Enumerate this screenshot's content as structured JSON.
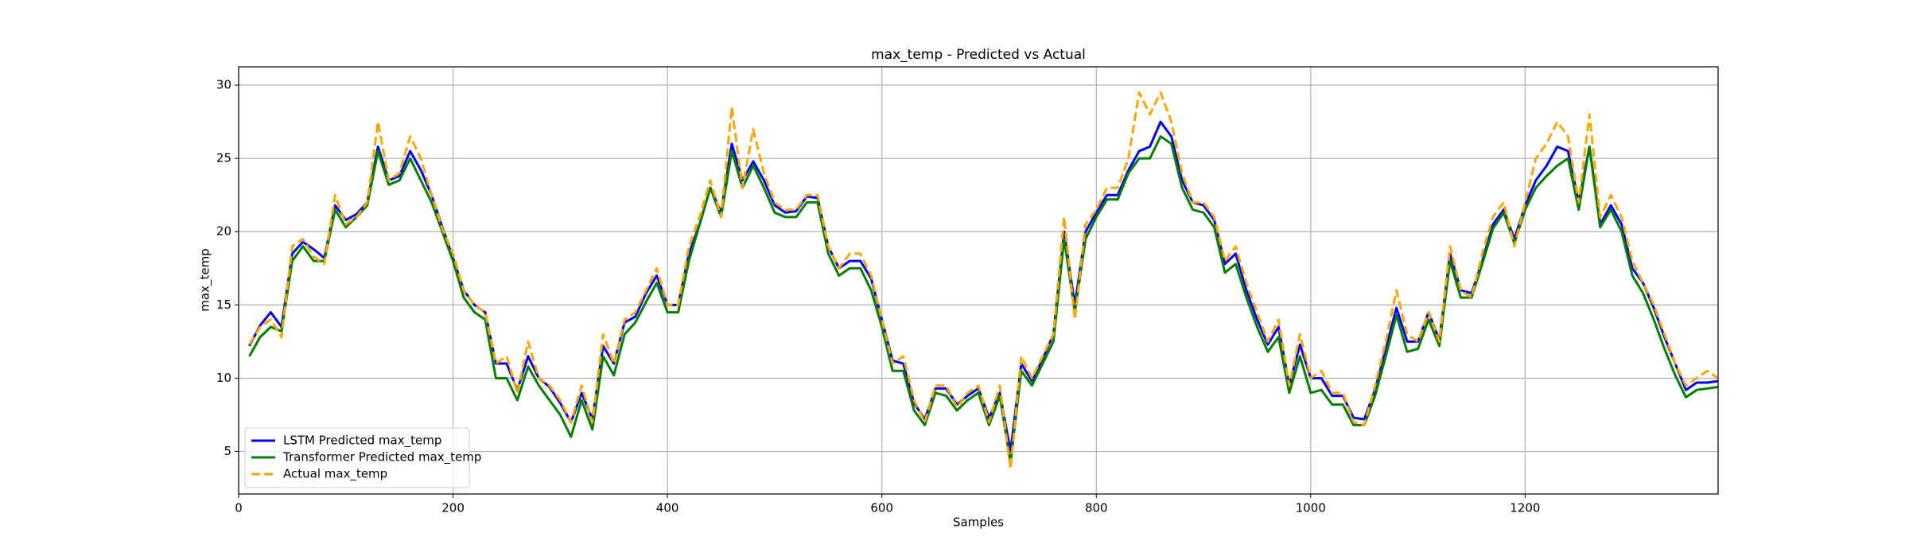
{
  "chart_data": {
    "type": "line",
    "title": "max_temp - Predicted vs Actual",
    "x_label": "Samples",
    "y_label": "max_temp",
    "xlim": [
      0,
      1380
    ],
    "ylim": [
      2.1,
      31.25
    ],
    "xticks": [
      0,
      200,
      400,
      600,
      800,
      1000,
      1200
    ],
    "yticks": [
      5,
      10,
      15,
      20,
      25,
      30
    ],
    "grid": true,
    "legend": "lower left",
    "x": [
      10,
      20,
      30,
      40,
      50,
      60,
      70,
      80,
      90,
      100,
      110,
      120,
      130,
      140,
      150,
      160,
      170,
      180,
      190,
      200,
      210,
      220,
      230,
      240,
      250,
      260,
      270,
      280,
      290,
      300,
      310,
      320,
      330,
      340,
      350,
      360,
      370,
      380,
      390,
      400,
      410,
      420,
      430,
      440,
      450,
      460,
      470,
      480,
      490,
      500,
      510,
      520,
      530,
      540,
      550,
      560,
      570,
      580,
      590,
      600,
      610,
      620,
      630,
      640,
      650,
      660,
      670,
      680,
      690,
      700,
      710,
      720,
      730,
      740,
      750,
      760,
      770,
      780,
      790,
      800,
      810,
      820,
      830,
      840,
      850,
      860,
      870,
      880,
      890,
      900,
      910,
      920,
      930,
      940,
      950,
      960,
      970,
      980,
      990,
      1000,
      1010,
      1020,
      1030,
      1040,
      1050,
      1060,
      1070,
      1080,
      1090,
      1100,
      1110,
      1120,
      1130,
      1140,
      1150,
      1160,
      1170,
      1180,
      1190,
      1200,
      1210,
      1220,
      1230,
      1240,
      1250,
      1260,
      1270,
      1280,
      1290,
      1300,
      1310,
      1320,
      1330,
      1340,
      1350,
      1360,
      1370,
      1380
    ],
    "series": [
      {
        "name": "LSTM Predicted max_temp",
        "color": "#0000ff",
        "style": "solid",
        "values": [
          12.2,
          13.6,
          14.5,
          13.5,
          18.5,
          19.3,
          18.8,
          18.2,
          21.8,
          20.8,
          21.2,
          22,
          25.8,
          23.5,
          23.8,
          25.5,
          24.2,
          22.5,
          20.3,
          18.2,
          16,
          15,
          14.5,
          11,
          11,
          9.2,
          11.5,
          10,
          9.4,
          8.3,
          7,
          9,
          7.2,
          12.2,
          11,
          13.8,
          14.2,
          15.8,
          17,
          15,
          15,
          18.5,
          20.5,
          23,
          21.3,
          26,
          23.5,
          24.8,
          23.5,
          21.8,
          21.3,
          21.4,
          22.4,
          22.3,
          19,
          17.5,
          18,
          18,
          16.8,
          14,
          11.2,
          11,
          8.3,
          7.2,
          9.3,
          9.3,
          8.2,
          8.8,
          9.3,
          7.3,
          9,
          5,
          11,
          9.8,
          11.3,
          13,
          20,
          15,
          20,
          21.3,
          22.5,
          22.5,
          24.2,
          25.5,
          25.8,
          27.5,
          26.5,
          23.5,
          22,
          21.8,
          20.8,
          17.8,
          18.5,
          16,
          14,
          12.3,
          13.5,
          9.5,
          12.3,
          10,
          10,
          8.8,
          8.8,
          7.3,
          7.2,
          9.2,
          12,
          14.8,
          12.5,
          12.5,
          14.5,
          12.6,
          18.5,
          16,
          15.8,
          18,
          20.5,
          21.5,
          19.5,
          21.8,
          23.5,
          24.5,
          25.8,
          25.5,
          22,
          25.8,
          20.5,
          21.8,
          20.5,
          17.5,
          16.5,
          14.8,
          12.8,
          11,
          9.2,
          9.7,
          9.7,
          9.8
        ]
      },
      {
        "name": "Transformer Predicted max_temp",
        "color": "#008000",
        "style": "solid",
        "values": [
          11.5,
          12.8,
          13.5,
          13.2,
          18,
          19,
          18,
          18,
          21.5,
          20.3,
          21,
          21.8,
          25.5,
          23.2,
          23.5,
          25,
          23.5,
          22,
          20,
          18,
          15.5,
          14.5,
          14,
          10,
          10,
          8.5,
          10.8,
          9.5,
          8.5,
          7.5,
          6,
          8.5,
          6.5,
          11.5,
          10.2,
          13,
          13.8,
          15.2,
          16.5,
          14.5,
          14.5,
          18,
          20.5,
          23,
          21,
          25.5,
          23,
          24.5,
          23,
          21.3,
          21,
          21,
          22,
          22,
          18.5,
          17,
          17.5,
          17.5,
          16,
          13.5,
          10.5,
          10.5,
          7.8,
          6.8,
          9,
          8.8,
          7.8,
          8.5,
          9,
          6.8,
          8.8,
          4.2,
          10.5,
          9.5,
          11,
          12.5,
          19.5,
          14.5,
          19.5,
          21,
          22.2,
          22.2,
          24,
          25,
          25,
          26.5,
          26,
          23,
          21.5,
          21.3,
          20.3,
          17.2,
          17.8,
          15.5,
          13.5,
          11.8,
          12.8,
          9,
          11.5,
          9,
          9.2,
          8.2,
          8.2,
          6.8,
          6.8,
          8.8,
          11.5,
          14.3,
          11.8,
          12,
          14,
          12.2,
          18,
          15.5,
          15.5,
          17.8,
          20.2,
          21.3,
          19.2,
          21.5,
          23,
          23.8,
          24.5,
          25,
          21.5,
          25.8,
          20.3,
          21.5,
          20,
          17,
          15.8,
          14,
          12,
          10.2,
          8.7,
          9.2,
          9.3,
          9.4
        ]
      },
      {
        "name": "Actual max_temp",
        "color": "#ffa500",
        "style": "dashed",
        "values": [
          12.3,
          13.5,
          14,
          12.8,
          19,
          19.5,
          18.3,
          17.8,
          22.5,
          20.5,
          21,
          22,
          27.5,
          23.5,
          24,
          26.5,
          25,
          22.5,
          20.2,
          18.5,
          16,
          15,
          14.5,
          11,
          11.5,
          9,
          12.5,
          10,
          9.5,
          8.5,
          7,
          9.5,
          7,
          13,
          11,
          14,
          14.5,
          16,
          17.5,
          15,
          15,
          19,
          21,
          23.5,
          21,
          28.5,
          23,
          27,
          24,
          22,
          21.5,
          21.5,
          22.5,
          22.5,
          19,
          17.5,
          18.5,
          18.5,
          17,
          14,
          11,
          11.5,
          8.5,
          7,
          9.5,
          9.5,
          8,
          9,
          9.5,
          7,
          9.5,
          3.8,
          11.5,
          10,
          11.5,
          13,
          21,
          14,
          20.5,
          21.5,
          23,
          23,
          25,
          29.5,
          28,
          29.5,
          27.5,
          24,
          22,
          22,
          21,
          18,
          19,
          16.5,
          14.5,
          12.5,
          14,
          9.5,
          13,
          10,
          10.5,
          9,
          9,
          7,
          6.8,
          9.5,
          12.5,
          16,
          13,
          12.5,
          14.5,
          12.5,
          19,
          16,
          15.5,
          18.5,
          21,
          22,
          19,
          22,
          25,
          26,
          27.5,
          26.5,
          22,
          28,
          21,
          22.5,
          21,
          18,
          16.5,
          15,
          13,
          11,
          9.5,
          10,
          10.5,
          10
        ]
      }
    ]
  }
}
